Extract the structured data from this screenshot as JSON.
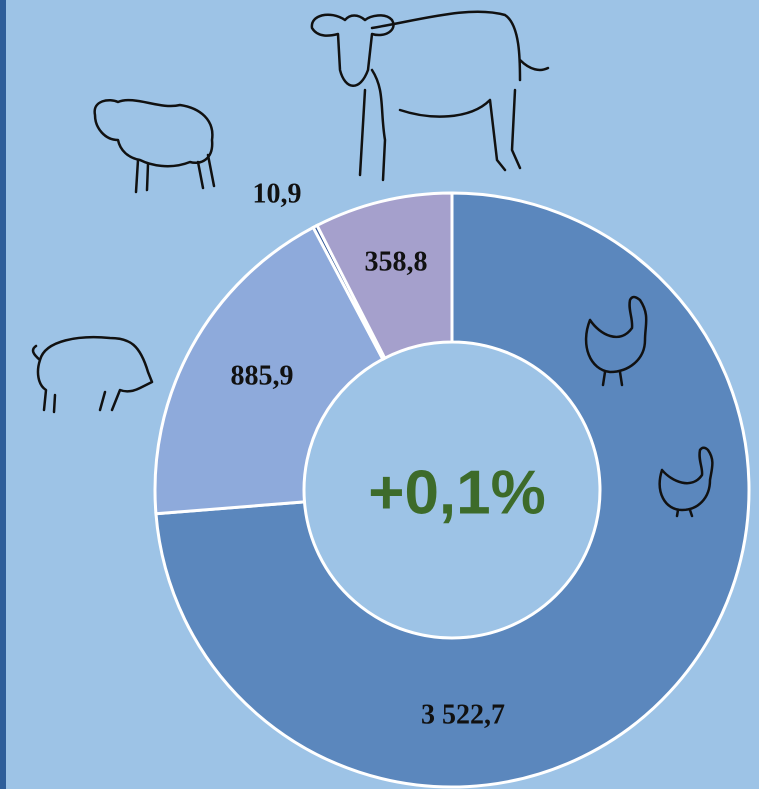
{
  "chart_data": {
    "type": "donut",
    "values": [
      3522.7,
      885.9,
      10.9,
      358.8
    ],
    "value_labels": [
      "3 522,7",
      "885,9",
      "10,9",
      "358,8"
    ],
    "colors": [
      "#5b87bd",
      "#8eaadb",
      "#2f5597",
      "#a5a0cc"
    ],
    "annotation": "+0,1%"
  }
}
